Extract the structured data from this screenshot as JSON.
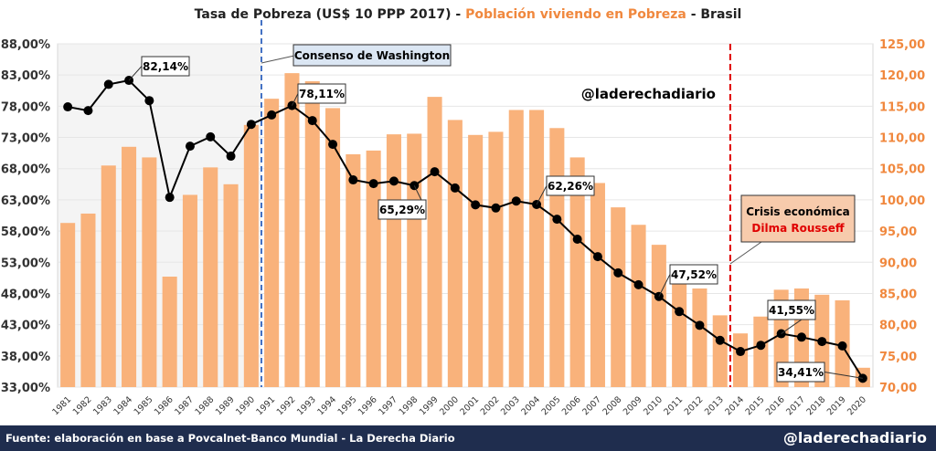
{
  "title": {
    "part1": "Tasa de Pobreza (US$ 10 PPP 2017) - ",
    "part2": "Población viviendo en Pobreza",
    "part3": " - Brasil"
  },
  "footer": {
    "source": "Fuente: elaboración en base a Povcalnet-Banco Mundial - La Derecha Diario",
    "handle": "@laderechadiario"
  },
  "watermark": "@laderechadiario",
  "annotations": {
    "washington": "Consenso de Washington",
    "crisis1": "Crisis económica",
    "crisis2": "Dilma Rousseff"
  },
  "colors": {
    "bar": "#f9b27b",
    "line": "#000000",
    "right_axis": "#f0883e",
    "washington": "#4472c4",
    "crisis": "#e00000"
  },
  "chart_data": {
    "type": "bar+line",
    "categories": [
      "1981",
      "1982",
      "1983",
      "1984",
      "1985",
      "1986",
      "1987",
      "1988",
      "1989",
      "1990",
      "1991",
      "1992",
      "1993",
      "1994",
      "1995",
      "1996",
      "1997",
      "1998",
      "1999",
      "2000",
      "2001",
      "2002",
      "2003",
      "2004",
      "2005",
      "2006",
      "2007",
      "2008",
      "2009",
      "2010",
      "2011",
      "2012",
      "2013",
      "2014",
      "2015",
      "2016",
      "2017",
      "2018",
      "2019",
      "2020"
    ],
    "series": [
      {
        "name": "Población viviendo en Pobreza (millones)",
        "type": "bar",
        "axis": "right",
        "values": [
          96.3,
          97.8,
          105.5,
          108.5,
          106.8,
          87.7,
          100.8,
          105.2,
          102.5,
          112.0,
          116.2,
          120.3,
          119.0,
          114.7,
          107.3,
          107.9,
          110.5,
          110.6,
          116.5,
          112.8,
          110.4,
          110.9,
          114.4,
          114.4,
          111.5,
          106.8,
          102.7,
          98.8,
          96.0,
          92.8,
          88.1,
          85.8,
          81.5,
          78.6,
          81.3,
          85.6,
          85.8,
          84.8,
          83.9,
          73.1
        ]
      },
      {
        "name": "Tasa de Pobreza (%)",
        "type": "line",
        "axis": "left",
        "values": [
          77.9,
          77.3,
          81.5,
          82.14,
          78.9,
          63.4,
          71.6,
          73.1,
          70.0,
          75.1,
          76.6,
          78.11,
          75.7,
          71.9,
          66.2,
          65.6,
          66.0,
          65.29,
          67.5,
          64.9,
          62.2,
          61.7,
          62.8,
          62.26,
          59.9,
          56.7,
          53.9,
          51.3,
          49.4,
          47.52,
          45.1,
          42.9,
          40.5,
          38.7,
          39.7,
          41.55,
          41.0,
          40.3,
          39.6,
          34.41
        ]
      }
    ],
    "data_labels": [
      {
        "year": "1984",
        "text": "82,14%"
      },
      {
        "year": "1992",
        "text": "78,11%"
      },
      {
        "year": "1998",
        "text": "65,29%"
      },
      {
        "year": "2004",
        "text": "62,26%"
      },
      {
        "year": "2010",
        "text": "47,52%"
      },
      {
        "year": "2016",
        "text": "41,55%"
      },
      {
        "year": "2020",
        "text": "34,41%"
      }
    ],
    "left_axis": {
      "ylim": [
        33,
        88
      ],
      "ticks": [
        "33,00%",
        "38,00%",
        "43,00%",
        "48,00%",
        "53,00%",
        "58,00%",
        "63,00%",
        "68,00%",
        "73,00%",
        "78,00%",
        "83,00%",
        "88,00%"
      ]
    },
    "right_axis": {
      "ylim": [
        70,
        125
      ],
      "ticks": [
        "70,00",
        "75,00",
        "80,00",
        "85,00",
        "90,00",
        "95,00",
        "100,00",
        "105,00",
        "110,00",
        "115,00",
        "120,00",
        "125,00"
      ]
    },
    "grid": true
  }
}
